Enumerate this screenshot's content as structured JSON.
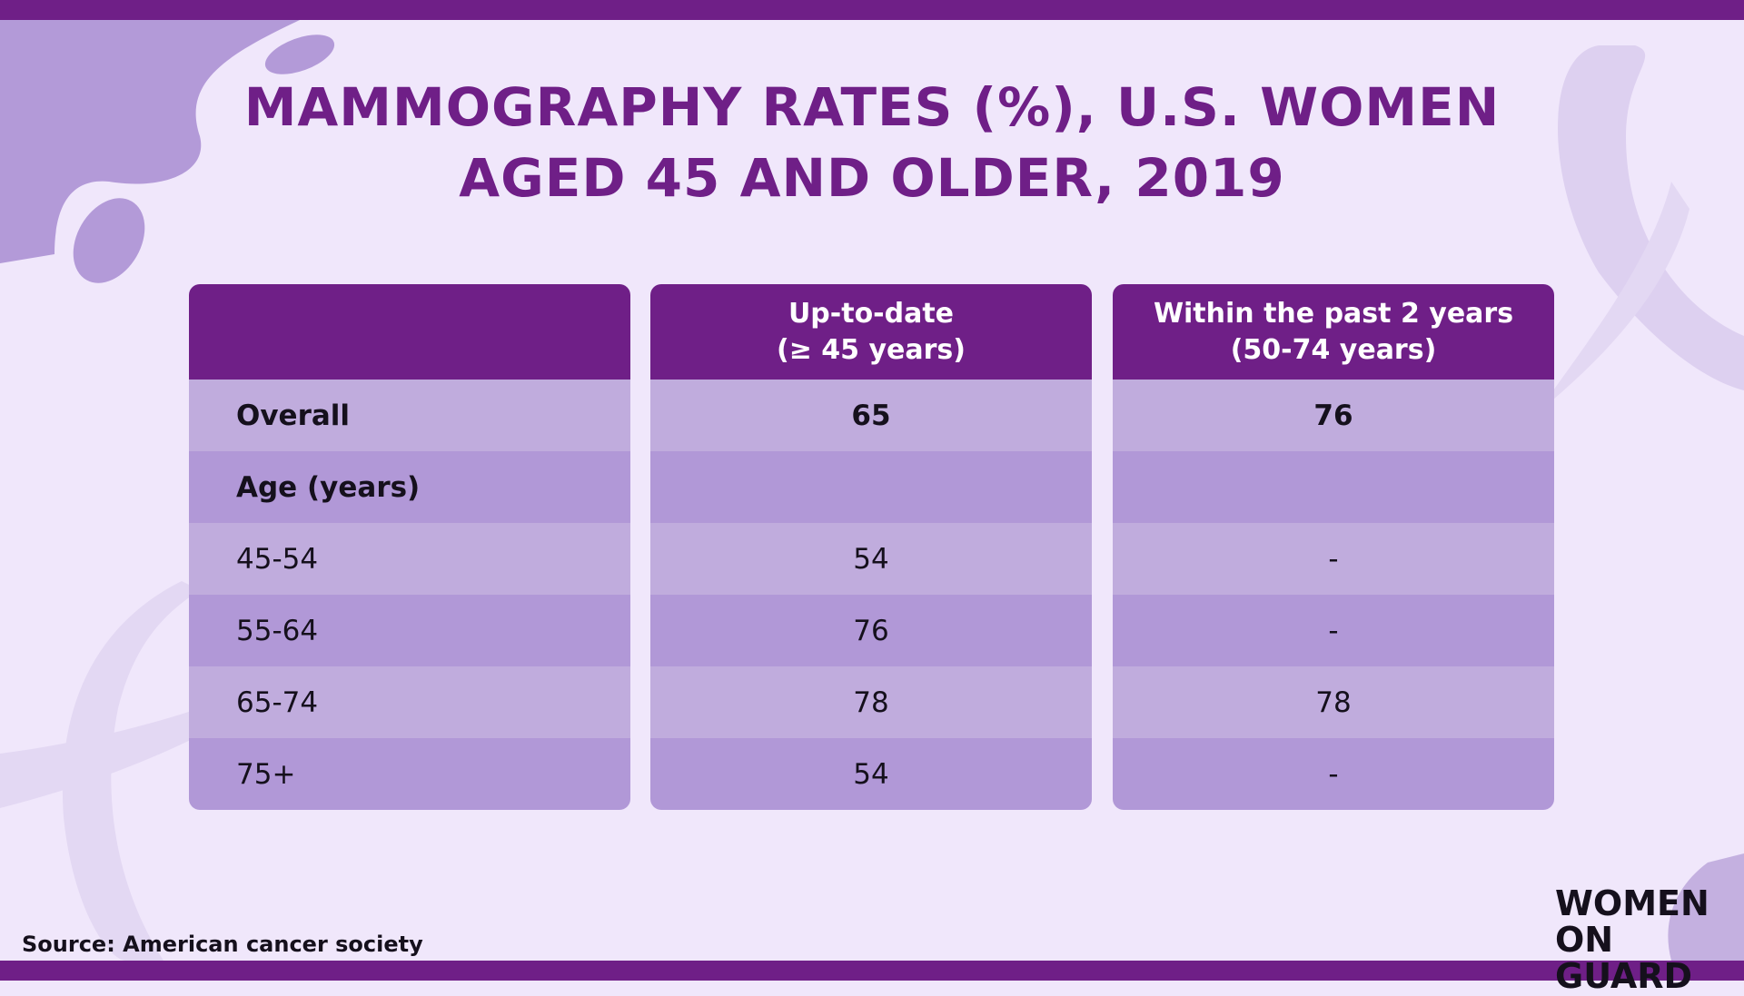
{
  "header": {
    "title_lines": [
      "MAMMOGRAPHY RATES (%), U.S. WOMEN",
      "AGED 45 AND OLDER, 2019"
    ]
  },
  "table": {
    "columns": [
      [
        "Up-to-date",
        "(≥ 45 years)"
      ],
      [
        "Within the past 2 years",
        "(50-74 years)"
      ]
    ],
    "rows": [
      {
        "label": "Overall",
        "values": [
          65,
          76
        ],
        "bold": true
      },
      {
        "label": "Age (years)",
        "bold": true
      },
      {
        "label": "45-54",
        "values": [
          54,
          "-"
        ]
      },
      {
        "label": "55-64",
        "values": [
          76,
          "-"
        ]
      },
      {
        "label": "65-74",
        "values": [
          78,
          78
        ]
      },
      {
        "label": "75+",
        "values": [
          54,
          "-"
        ]
      }
    ]
  },
  "footer": {
    "source": "Source: American cancer society"
  },
  "logo": {
    "lines": [
      "WOMEN",
      "ON GUARD"
    ]
  }
}
